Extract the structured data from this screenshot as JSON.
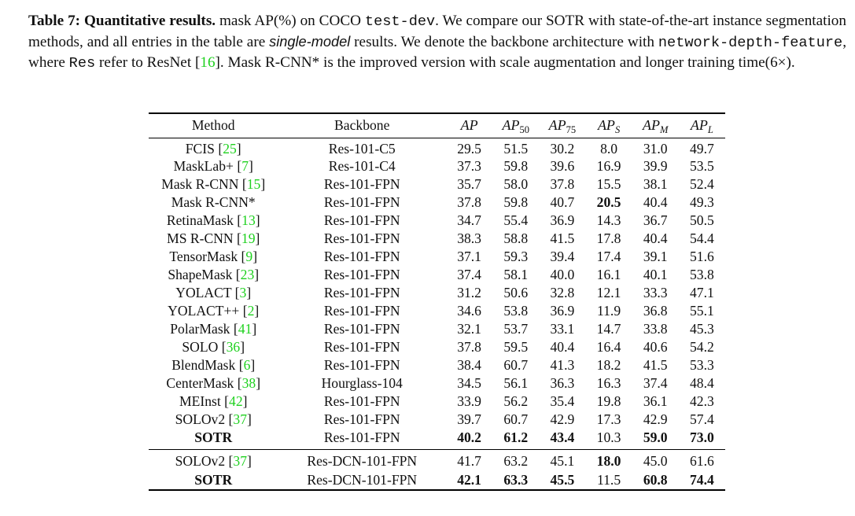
{
  "caption": {
    "label": "Table 7:",
    "title": "Quantitative results.",
    "t1": " mask AP(%) on COCO ",
    "mono1": "test-dev",
    "t2": ". We compare our SOTR with state-of-the-art instance segmentation methods, and all entries in the table are ",
    "emph": "single-model",
    "t3": " results. We denote the backbone architecture with ",
    "mono2": "network-depth-feature",
    "t4": ", where ",
    "mono3": "Res",
    "t5": " refer to ResNet [",
    "cite": "16",
    "t6": "]. Mask R-CNN* is the improved version with scale augmentation and longer training time(6×)."
  },
  "table": {
    "headers": {
      "method": "Method",
      "backbone": "Backbone",
      "ap": "AP",
      "ap50_base": "AP",
      "ap50_sub": "50",
      "ap75_base": "AP",
      "ap75_sub": "75",
      "aps_base": "AP",
      "aps_sub": "S",
      "apm_base": "AP",
      "apm_sub": "M",
      "apl_base": "AP",
      "apl_sub": "L"
    },
    "rows": [
      {
        "method": "FCIS",
        "ref": "25",
        "backbone": "Res-101-C5",
        "ap": "29.5",
        "ap50": "51.5",
        "ap75": "30.2",
        "aps": "8.0",
        "apm": "31.0",
        "apl": "49.7"
      },
      {
        "method": "MaskLab+",
        "ref": "7",
        "backbone": "Res-101-C4",
        "ap": "37.3",
        "ap50": "59.8",
        "ap75": "39.6",
        "aps": "16.9",
        "apm": "39.9",
        "apl": "53.5"
      },
      {
        "method": "Mask R-CNN",
        "ref": "15",
        "backbone": "Res-101-FPN",
        "ap": "35.7",
        "ap50": "58.0",
        "ap75": "37.8",
        "aps": "15.5",
        "apm": "38.1",
        "apl": "52.4"
      },
      {
        "method": "Mask R-CNN*",
        "ref": "",
        "backbone": "Res-101-FPN",
        "ap": "37.8",
        "ap50": "59.8",
        "ap75": "40.7",
        "aps": "20.5",
        "apm": "40.4",
        "apl": "49.3"
      },
      {
        "method": "RetinaMask",
        "ref": "13",
        "backbone": "Res-101-FPN",
        "ap": "34.7",
        "ap50": "55.4",
        "ap75": "36.9",
        "aps": "14.3",
        "apm": "36.7",
        "apl": "50.5"
      },
      {
        "method": "MS R-CNN",
        "ref": "19",
        "backbone": "Res-101-FPN",
        "ap": "38.3",
        "ap50": "58.8",
        "ap75": "41.5",
        "aps": "17.8",
        "apm": "40.4",
        "apl": "54.4"
      },
      {
        "method": "TensorMask",
        "ref": "9",
        "backbone": "Res-101-FPN",
        "ap": "37.1",
        "ap50": "59.3",
        "ap75": "39.4",
        "aps": "17.4",
        "apm": "39.1",
        "apl": "51.6"
      },
      {
        "method": "ShapeMask",
        "ref": "23",
        "backbone": "Res-101-FPN",
        "ap": "37.4",
        "ap50": "58.1",
        "ap75": "40.0",
        "aps": "16.1",
        "apm": "40.1",
        "apl": "53.8"
      },
      {
        "method": "YOLACT",
        "ref": "3",
        "backbone": "Res-101-FPN",
        "ap": "31.2",
        "ap50": "50.6",
        "ap75": "32.8",
        "aps": "12.1",
        "apm": "33.3",
        "apl": "47.1"
      },
      {
        "method": "YOLACT++",
        "ref": "2",
        "backbone": "Res-101-FPN",
        "ap": "34.6",
        "ap50": "53.8",
        "ap75": "36.9",
        "aps": "11.9",
        "apm": "36.8",
        "apl": "55.1"
      },
      {
        "method": "PolarMask",
        "ref": "41",
        "backbone": "Res-101-FPN",
        "ap": "32.1",
        "ap50": "53.7",
        "ap75": "33.1",
        "aps": "14.7",
        "apm": "33.8",
        "apl": "45.3"
      },
      {
        "method": "SOLO",
        "ref": "36",
        "backbone": "Res-101-FPN",
        "ap": "37.8",
        "ap50": "59.5",
        "ap75": "40.4",
        "aps": "16.4",
        "apm": "40.6",
        "apl": "54.2"
      },
      {
        "method": "BlendMask",
        "ref": "6",
        "backbone": "Res-101-FPN",
        "ap": "38.4",
        "ap50": "60.7",
        "ap75": "41.3",
        "aps": "18.2",
        "apm": "41.5",
        "apl": "53.3"
      },
      {
        "method": "CenterMask",
        "ref": "38",
        "backbone": "Hourglass-104",
        "ap": "34.5",
        "ap50": "56.1",
        "ap75": "36.3",
        "aps": "16.3",
        "apm": "37.4",
        "apl": "48.4"
      },
      {
        "method": "MEInst",
        "ref": "42",
        "backbone": "Res-101-FPN",
        "ap": "33.9",
        "ap50": "56.2",
        "ap75": "35.4",
        "aps": "19.8",
        "apm": "36.1",
        "apl": "42.3"
      },
      {
        "method": "SOLOv2",
        "ref": "37",
        "backbone": "Res-101-FPN",
        "ap": "39.7",
        "ap50": "60.7",
        "ap75": "42.9",
        "aps": "17.3",
        "apm": "42.9",
        "apl": "57.4"
      },
      {
        "method": "SOTR",
        "ref": "",
        "backbone": "Res-101-FPN",
        "ap": "40.2",
        "ap50": "61.2",
        "ap75": "43.4",
        "aps": "10.3",
        "apm": "59.0",
        "apl": "73.0"
      },
      {
        "method": "SOLOv2",
        "ref": "37",
        "backbone": "Res-DCN-101-FPN",
        "ap": "41.7",
        "ap50": "63.2",
        "ap75": "45.1",
        "aps": "18.0",
        "apm": "45.0",
        "apl": "61.6"
      },
      {
        "method": "SOTR",
        "ref": "",
        "backbone": "Res-DCN-101-FPN",
        "ap": "42.1",
        "ap50": "63.3",
        "ap75": "45.5",
        "aps": "11.5",
        "apm": "60.8",
        "apl": "74.4"
      }
    ]
  },
  "colors": {
    "citation_link": "#1fd11f",
    "text": "#111111",
    "background": "#ffffff"
  }
}
